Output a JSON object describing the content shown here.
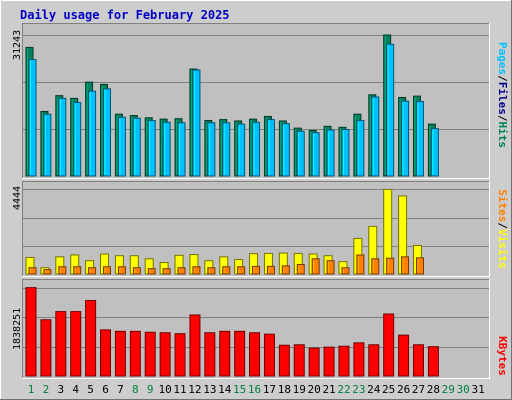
{
  "title": "Daily usage for February 2025",
  "colors": {
    "background": "#cdcdcd",
    "plot_bg": "#c0c0c0",
    "hits": "#00805c",
    "files": "#00c0ff",
    "pages": "#00008b",
    "visits": "#ffff00",
    "sites": "#ff8000",
    "kbytes": "#ff0000",
    "title_text": "#0000c8",
    "weekend_label": "#008040",
    "weekday_label": "#000000"
  },
  "labels": {
    "pages": "Pages",
    "files": "Files",
    "hits": "Hits",
    "sites": "Sites",
    "visits": "Visits",
    "kbytes": "KBytes",
    "sep": "/"
  },
  "chart_data": [
    {
      "type": "bar",
      "panel": "hits-files-pages",
      "ymax_label": "31243",
      "ylim": [
        0,
        31243
      ],
      "categories": [
        "1",
        "2",
        "3",
        "4",
        "5",
        "6",
        "7",
        "8",
        "9",
        "10",
        "11",
        "12",
        "13",
        "14",
        "15",
        "16",
        "17",
        "18",
        "19",
        "20",
        "21",
        "22",
        "23",
        "24",
        "25",
        "26",
        "27",
        "28",
        "29",
        "30",
        "31"
      ],
      "weekend_days": [
        "1",
        "2",
        "8",
        "9",
        "15",
        "16",
        "22",
        "23",
        "29",
        "30"
      ],
      "series": [
        {
          "name": "Hits",
          "values": [
            28500,
            14300,
            17800,
            17200,
            20800,
            20300,
            13700,
            13400,
            12900,
            12600,
            12700,
            23700,
            12300,
            12500,
            12200,
            12600,
            13200,
            12200,
            10600,
            10100,
            11000,
            10800,
            13700,
            18000,
            31243,
            17400,
            17700,
            11500,
            0,
            0,
            0
          ]
        },
        {
          "name": "Files",
          "values": [
            25800,
            13700,
            17200,
            16300,
            18800,
            19300,
            13000,
            12800,
            12300,
            11900,
            11800,
            23500,
            11800,
            11800,
            11500,
            11900,
            12500,
            11600,
            9900,
            9600,
            10200,
            10300,
            12300,
            17500,
            29200,
            16600,
            16500,
            10500,
            0,
            0,
            0
          ]
        },
        {
          "name": "Pages",
          "values": [
            16500,
            8700,
            11200,
            9800,
            15300,
            12600,
            8800,
            8600,
            9200,
            7500,
            8100,
            11600,
            7700,
            7800,
            7800,
            8300,
            8100,
            7100,
            8300,
            7500,
            9100,
            8300,
            9800,
            13400,
            24100,
            12600,
            13200,
            9100,
            0,
            0,
            0
          ]
        }
      ]
    },
    {
      "type": "bar",
      "panel": "visits-sites",
      "ymax_label": "4444",
      "ylim": [
        0,
        4444
      ],
      "categories": [
        "1",
        "2",
        "3",
        "4",
        "5",
        "6",
        "7",
        "8",
        "9",
        "10",
        "11",
        "12",
        "13",
        "14",
        "15",
        "16",
        "17",
        "18",
        "19",
        "20",
        "21",
        "22",
        "23",
        "24",
        "25",
        "26",
        "27",
        "28",
        "29",
        "30",
        "31"
      ],
      "series": [
        {
          "name": "Visits",
          "values": [
            870,
            330,
            900,
            1000,
            700,
            1050,
            960,
            960,
            800,
            600,
            980,
            1020,
            700,
            900,
            760,
            1070,
            1080,
            1100,
            1080,
            1050,
            960,
            650,
            1870,
            2500,
            4444,
            4100,
            1500,
            0,
            0,
            0,
            0
          ]
        },
        {
          "name": "Sites",
          "values": [
            330,
            230,
            380,
            380,
            330,
            380,
            380,
            330,
            280,
            280,
            330,
            380,
            330,
            380,
            380,
            400,
            400,
            430,
            500,
            800,
            700,
            330,
            1000,
            800,
            830,
            900,
            850,
            0,
            0,
            0,
            0
          ]
        }
      ]
    },
    {
      "type": "bar",
      "panel": "kbytes",
      "ymax_label": "1838251",
      "ylim": [
        0,
        1838251
      ],
      "categories": [
        "1",
        "2",
        "3",
        "4",
        "5",
        "6",
        "7",
        "8",
        "9",
        "10",
        "11",
        "12",
        "13",
        "14",
        "15",
        "16",
        "17",
        "18",
        "19",
        "20",
        "21",
        "22",
        "23",
        "24",
        "25",
        "26",
        "27",
        "28",
        "29",
        "30",
        "31"
      ],
      "series": [
        {
          "name": "KBytes",
          "values": [
            1838251,
            1170000,
            1340000,
            1340000,
            1570000,
            960000,
            930000,
            930000,
            910000,
            900000,
            880000,
            1270000,
            900000,
            930000,
            930000,
            900000,
            870000,
            640000,
            650000,
            580000,
            600000,
            620000,
            690000,
            650000,
            1290000,
            850000,
            650000,
            610000,
            0,
            0,
            0
          ]
        }
      ]
    }
  ]
}
